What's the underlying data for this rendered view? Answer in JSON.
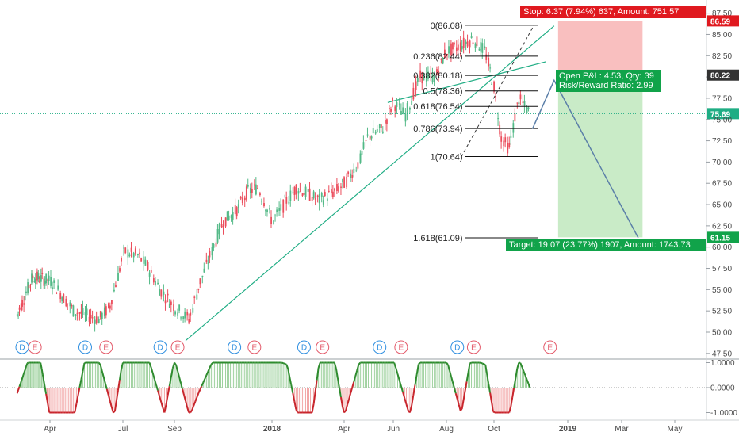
{
  "chart_data": [
    {
      "type": "line",
      "subtype": "candlestick-price",
      "x_axis_labels": [
        "Apr",
        "Jul",
        "Sep",
        "2018",
        "Apr",
        "Jun",
        "Aug",
        "Oct",
        "2019",
        "Mar",
        "May"
      ],
      "y_ticks": [
        "87.50",
        "85.00",
        "82.50",
        "80.00",
        "77.50",
        "75.00",
        "72.50",
        "70.00",
        "67.50",
        "65.00",
        "62.50",
        "60.00",
        "57.50",
        "55.00",
        "52.50",
        "50.00",
        "47.50"
      ],
      "ylim": [
        46,
        88.5
      ],
      "x_dates": [
        "2017-02-01",
        "2017-03-01",
        "2017-04-03",
        "2017-05-01",
        "2017-06-01",
        "2017-06-15",
        "2017-07-03",
        "2017-07-20",
        "2017-08-01",
        "2017-08-15",
        "2017-09-01",
        "2017-09-20",
        "2017-10-02",
        "2017-10-20",
        "2017-11-01",
        "2017-11-20",
        "2017-12-01",
        "2017-12-15",
        "2018-01-02",
        "2018-01-20",
        "2018-02-01",
        "2018-02-20",
        "2018-03-01",
        "2018-03-20",
        "2018-04-02",
        "2018-04-20",
        "2018-05-01",
        "2018-05-20",
        "2018-06-01",
        "2018-06-15",
        "2018-07-02",
        "2018-07-20",
        "2018-08-01",
        "2018-08-15",
        "2018-09-04",
        "2018-09-20",
        "2018-10-01",
        "2018-10-10",
        "2018-10-20",
        "2018-11-01",
        "2018-11-15"
      ],
      "close": [
        52.0,
        56.5,
        56.0,
        52.5,
        51.5,
        53.0,
        59.5,
        59.0,
        57.5,
        55.0,
        53.0,
        51.5,
        55.5,
        60.0,
        63.0,
        64.5,
        66.5,
        67.0,
        63.0,
        65.5,
        67.0,
        66.0,
        65.5,
        66.5,
        67.5,
        70.0,
        73.0,
        74.0,
        77.0,
        75.5,
        80.0,
        80.0,
        83.0,
        83.5,
        84.5,
        83.0,
        79.0,
        73.0,
        71.5,
        77.5,
        75.7
      ],
      "last_price_label": "75.69",
      "fibonacci_levels": [
        {
          "label": "0(86.08)",
          "value": 86.08
        },
        {
          "label": "0.236(82.44)",
          "value": 82.44
        },
        {
          "label": "0.382(80.18)",
          "value": 80.18
        },
        {
          "label": "0.5(78.36)",
          "value": 78.36
        },
        {
          "label": "0.618(76.54)",
          "value": 76.54
        },
        {
          "label": "0.786(73.94)",
          "value": 73.94
        },
        {
          "label": "1(70.64)",
          "value": 70.64
        },
        {
          "label": "1.618(61.09)",
          "value": 61.09
        }
      ],
      "trendline": {
        "from": {
          "date": "2017-09-15",
          "value": 49.0
        },
        "to": {
          "date": "2018-12-15",
          "value": 86.0
        }
      },
      "position": {
        "entry": 80.22,
        "stop": 86.59,
        "target": 61.15,
        "stop_text": "Stop: 6.37 (7.94%) 637, Amount: 751.57",
        "target_text": "Target: 19.07 (23.77%) 1907, Amount: 1743.73",
        "pnl_text": "Open P&L: 4.53, Qty: 39",
        "rr_text": "Risk/Reward Ratio: 2.99",
        "price_tags": [
          "86.59",
          "80.22",
          "61.15"
        ]
      },
      "events": [
        {
          "label": "D",
          "date": "2017-02-10"
        },
        {
          "label": "E",
          "date": "2017-03-05"
        },
        {
          "label": "D",
          "date": "2017-05-15"
        },
        {
          "label": "E",
          "date": "2017-06-10"
        },
        {
          "label": "D",
          "date": "2017-08-15"
        },
        {
          "label": "E",
          "date": "2017-09-05"
        },
        {
          "label": "D",
          "date": "2017-11-15"
        },
        {
          "label": "E",
          "date": "2017-12-10"
        },
        {
          "label": "D",
          "date": "2018-02-10"
        },
        {
          "label": "E",
          "date": "2018-03-05"
        },
        {
          "label": "D",
          "date": "2018-05-15"
        },
        {
          "label": "E",
          "date": "2018-06-10"
        },
        {
          "label": "D",
          "date": "2018-08-15"
        },
        {
          "label": "E",
          "date": "2018-09-05"
        },
        {
          "label": "E",
          "date": "2018-12-10"
        }
      ]
    },
    {
      "type": "line",
      "subtype": "oscillator",
      "y_ticks": [
        "1.0000",
        "0.0000",
        "-1.0000"
      ],
      "ylim": [
        -1.2,
        1.2
      ],
      "x_dates": [
        "2017-02-01",
        "2017-02-20",
        "2017-03-01",
        "2017-03-15",
        "2017-04-01",
        "2017-05-01",
        "2017-05-15",
        "2017-06-01",
        "2017-06-20",
        "2017-07-01",
        "2017-07-20",
        "2017-08-01",
        "2017-08-20",
        "2017-09-01",
        "2017-09-20",
        "2017-10-01",
        "2017-10-20",
        "2017-11-01",
        "2017-11-20",
        "2017-12-01",
        "2017-12-20",
        "2018-01-01",
        "2018-01-20",
        "2018-02-01",
        "2018-02-20",
        "2018-03-01",
        "2018-03-20",
        "2018-04-01",
        "2018-04-20",
        "2018-05-01",
        "2018-05-20",
        "2018-06-01",
        "2018-06-20",
        "2018-07-01",
        "2018-07-20",
        "2018-08-01",
        "2018-08-20",
        "2018-09-01",
        "2018-09-20",
        "2018-10-01",
        "2018-10-20",
        "2018-11-01",
        "2018-11-15"
      ],
      "values": [
        -0.2,
        0.9,
        1.0,
        0.9,
        -1.0,
        -1.0,
        1.0,
        1.0,
        -1.0,
        1.0,
        0.9,
        1.0,
        -0.9,
        1.0,
        -1.0,
        -0.2,
        1.0,
        1.0,
        1.0,
        1.0,
        1.0,
        1.0,
        0.8,
        -0.9,
        -1.0,
        0.9,
        1.0,
        -1.0,
        0.9,
        1.0,
        1.0,
        1.0,
        -1.0,
        1.0,
        0.9,
        1.0,
        -0.9,
        1.0,
        0.8,
        -1.0,
        -1.0,
        1.0,
        0.0
      ]
    }
  ],
  "colors": {
    "up": "#53b987",
    "down": "#eb4d5c",
    "trend": "#1fad84",
    "stop_zone": "#f7a9a9",
    "target_zone": "#bfe8bd",
    "tag_red": "#e0191f",
    "tag_green": "#11a34a",
    "tag_dark": "#333333",
    "osc_line_up": "#2e8b2e",
    "osc_line_down": "#c8252c"
  }
}
